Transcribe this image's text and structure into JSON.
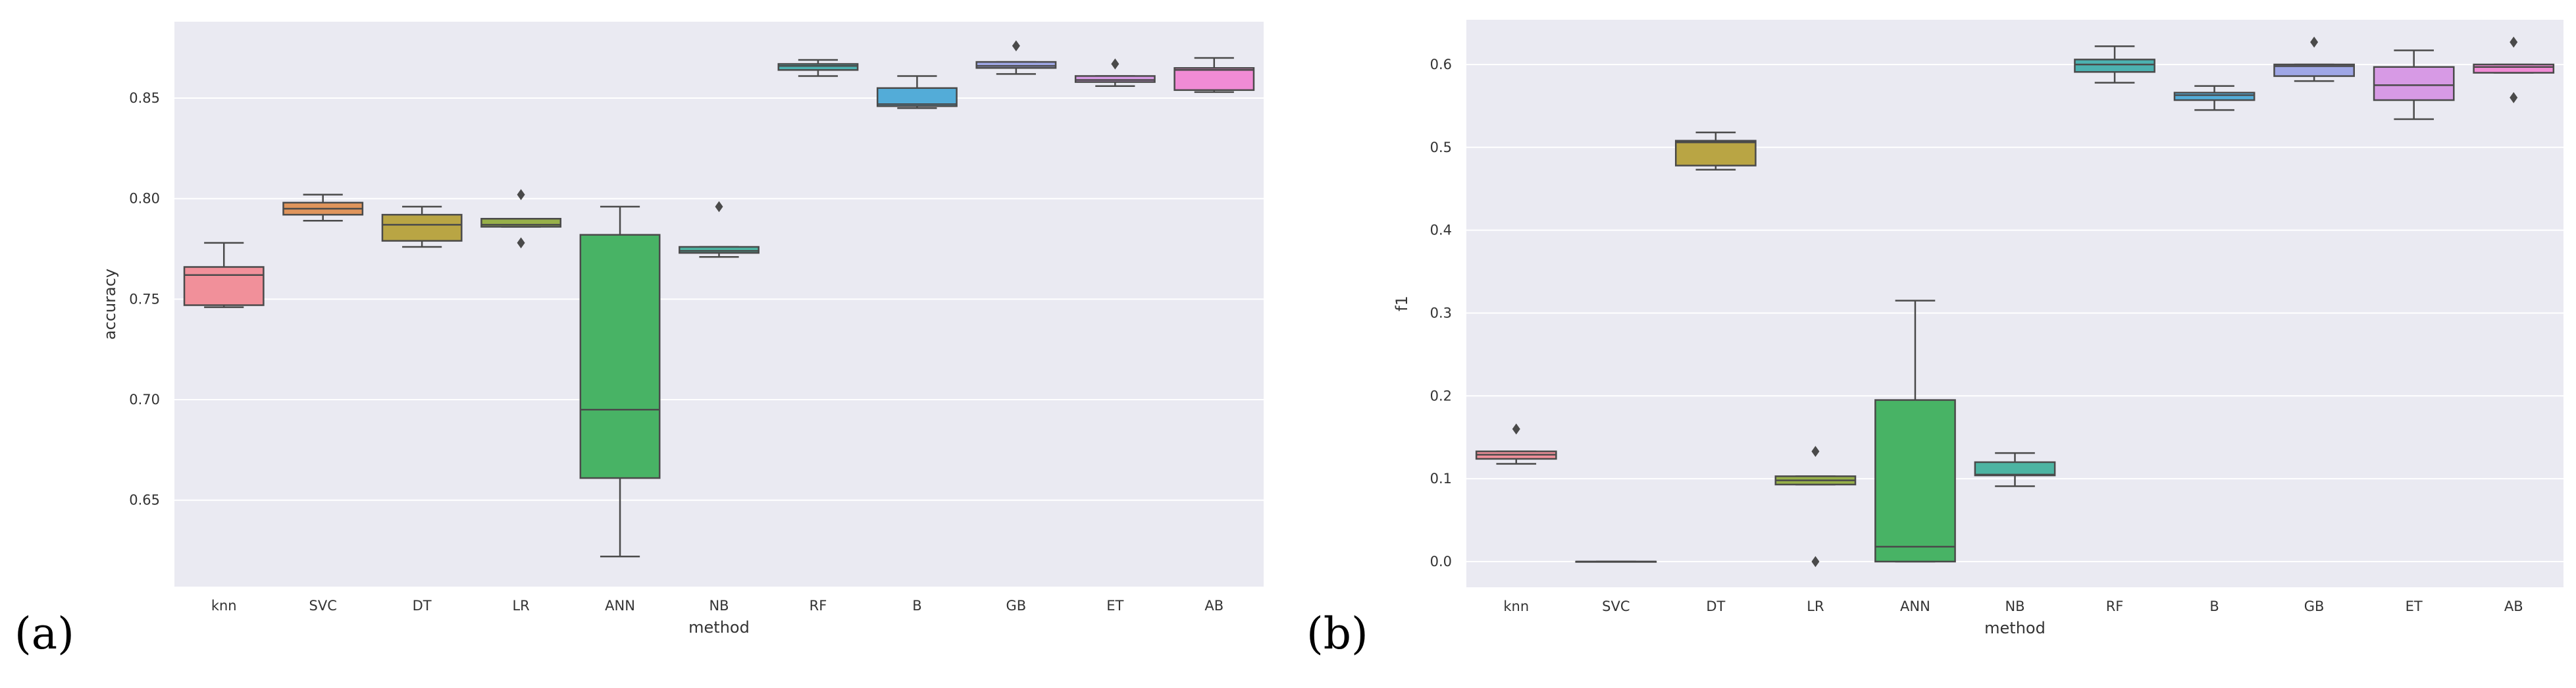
{
  "chart_data": [
    {
      "type": "box",
      "panel_label": "(a)",
      "xlabel": "method",
      "ylabel": "accuracy",
      "ylim": [
        0.607,
        0.888
      ],
      "yticks": [
        0.65,
        0.7,
        0.75,
        0.8,
        0.85
      ],
      "ytick_labels": [
        "0.65",
        "0.70",
        "0.75",
        "0.80",
        "0.85"
      ],
      "grid": true,
      "categories": [
        "knn",
        "SVC",
        "DT",
        "LR",
        "ANN",
        "NB",
        "RF",
        "B",
        "GB",
        "ET",
        "AB"
      ],
      "boxes": [
        {
          "label": "knn",
          "color": "#f1909a",
          "whisker_low": 0.746,
          "q1": 0.747,
          "median": 0.762,
          "q3": 0.766,
          "whisker_high": 0.778,
          "outliers": []
        },
        {
          "label": "SVC",
          "color": "#e0955c",
          "whisker_low": 0.789,
          "q1": 0.792,
          "median": 0.795,
          "q3": 0.798,
          "whisker_high": 0.802,
          "outliers": []
        },
        {
          "label": "DT",
          "color": "#b9a544",
          "whisker_low": 0.776,
          "q1": 0.779,
          "median": 0.787,
          "q3": 0.792,
          "whisker_high": 0.796,
          "outliers": []
        },
        {
          "label": "LR",
          "color": "#97b049",
          "whisker_low": 0.786,
          "q1": 0.786,
          "median": 0.787,
          "q3": 0.79,
          "whisker_high": 0.79,
          "outliers": [
            0.778,
            0.802
          ]
        },
        {
          "label": "ANN",
          "color": "#48b365",
          "whisker_low": 0.622,
          "q1": 0.661,
          "median": 0.695,
          "q3": 0.782,
          "whisker_high": 0.796,
          "outliers": []
        },
        {
          "label": "NB",
          "color": "#4db4a2",
          "whisker_low": 0.771,
          "q1": 0.773,
          "median": 0.774,
          "q3": 0.776,
          "whisker_high": 0.776,
          "outliers": [
            0.796
          ]
        },
        {
          "label": "RF",
          "color": "#4cb1b0",
          "whisker_low": 0.861,
          "q1": 0.864,
          "median": 0.866,
          "q3": 0.867,
          "whisker_high": 0.869,
          "outliers": []
        },
        {
          "label": "B",
          "color": "#53acd8",
          "whisker_low": 0.845,
          "q1": 0.846,
          "median": 0.847,
          "q3": 0.855,
          "whisker_high": 0.861,
          "outliers": []
        },
        {
          "label": "GB",
          "color": "#9fa7e6",
          "whisker_low": 0.862,
          "q1": 0.865,
          "median": 0.866,
          "q3": 0.868,
          "whisker_high": 0.868,
          "outliers": [
            0.876
          ]
        },
        {
          "label": "ET",
          "color": "#d79ae5",
          "whisker_low": 0.856,
          "q1": 0.858,
          "median": 0.859,
          "q3": 0.861,
          "whisker_high": 0.861,
          "outliers": [
            0.867
          ]
        },
        {
          "label": "AB",
          "color": "#f08bd5",
          "whisker_low": 0.853,
          "q1": 0.854,
          "median": 0.864,
          "q3": 0.865,
          "whisker_high": 0.87,
          "outliers": []
        }
      ]
    },
    {
      "type": "box",
      "panel_label": "(b)",
      "xlabel": "method",
      "ylabel": "f1",
      "ylim": [
        -0.031,
        0.654
      ],
      "yticks": [
        0.0,
        0.1,
        0.2,
        0.3,
        0.4,
        0.5,
        0.6
      ],
      "ytick_labels": [
        "0.0",
        "0.1",
        "0.2",
        "0.3",
        "0.4",
        "0.5",
        "0.6"
      ],
      "grid": true,
      "categories": [
        "knn",
        "SVC",
        "DT",
        "LR",
        "ANN",
        "NB",
        "RF",
        "B",
        "GB",
        "ET",
        "AB"
      ],
      "boxes": [
        {
          "label": "knn",
          "color": "#f1909a",
          "whisker_low": 0.118,
          "q1": 0.124,
          "median": 0.129,
          "q3": 0.133,
          "whisker_high": 0.133,
          "outliers": [
            0.16
          ]
        },
        {
          "label": "SVC",
          "color": "#e0955c",
          "whisker_low": 0.0,
          "q1": 0.0,
          "median": 0.0,
          "q3": 0.0,
          "whisker_high": 0.0,
          "outliers": []
        },
        {
          "label": "DT",
          "color": "#b9a544",
          "whisker_low": 0.473,
          "q1": 0.478,
          "median": 0.506,
          "q3": 0.508,
          "whisker_high": 0.518,
          "outliers": []
        },
        {
          "label": "LR",
          "color": "#97b049",
          "whisker_low": 0.093,
          "q1": 0.093,
          "median": 0.098,
          "q3": 0.103,
          "whisker_high": 0.103,
          "outliers": [
            0.0,
            0.133
          ]
        },
        {
          "label": "ANN",
          "color": "#48b365",
          "whisker_low": 0.0,
          "q1": 0.0,
          "median": 0.018,
          "q3": 0.195,
          "whisker_high": 0.315,
          "outliers": []
        },
        {
          "label": "NB",
          "color": "#4db4a2",
          "whisker_low": 0.091,
          "q1": 0.104,
          "median": 0.105,
          "q3": 0.12,
          "whisker_high": 0.131,
          "outliers": []
        },
        {
          "label": "RF",
          "color": "#4cb1b0",
          "whisker_low": 0.578,
          "q1": 0.591,
          "median": 0.6,
          "q3": 0.606,
          "whisker_high": 0.622,
          "outliers": []
        },
        {
          "label": "B",
          "color": "#53acd8",
          "whisker_low": 0.545,
          "q1": 0.557,
          "median": 0.563,
          "q3": 0.566,
          "whisker_high": 0.574,
          "outliers": []
        },
        {
          "label": "GB",
          "color": "#9fa7e6",
          "whisker_low": 0.58,
          "q1": 0.586,
          "median": 0.598,
          "q3": 0.6,
          "whisker_high": 0.6,
          "outliers": [
            0.627
          ]
        },
        {
          "label": "ET",
          "color": "#d79ae5",
          "whisker_low": 0.534,
          "q1": 0.557,
          "median": 0.575,
          "q3": 0.597,
          "whisker_high": 0.617,
          "outliers": []
        },
        {
          "label": "AB",
          "color": "#f08bd5",
          "whisker_low": 0.59,
          "q1": 0.59,
          "median": 0.597,
          "q3": 0.6,
          "whisker_high": 0.6,
          "outliers": [
            0.56,
            0.627
          ]
        }
      ]
    }
  ],
  "colors": {
    "plot_background": "#eaeaf2",
    "gridline": "#ffffff",
    "box_line": "#4a4a4a"
  }
}
